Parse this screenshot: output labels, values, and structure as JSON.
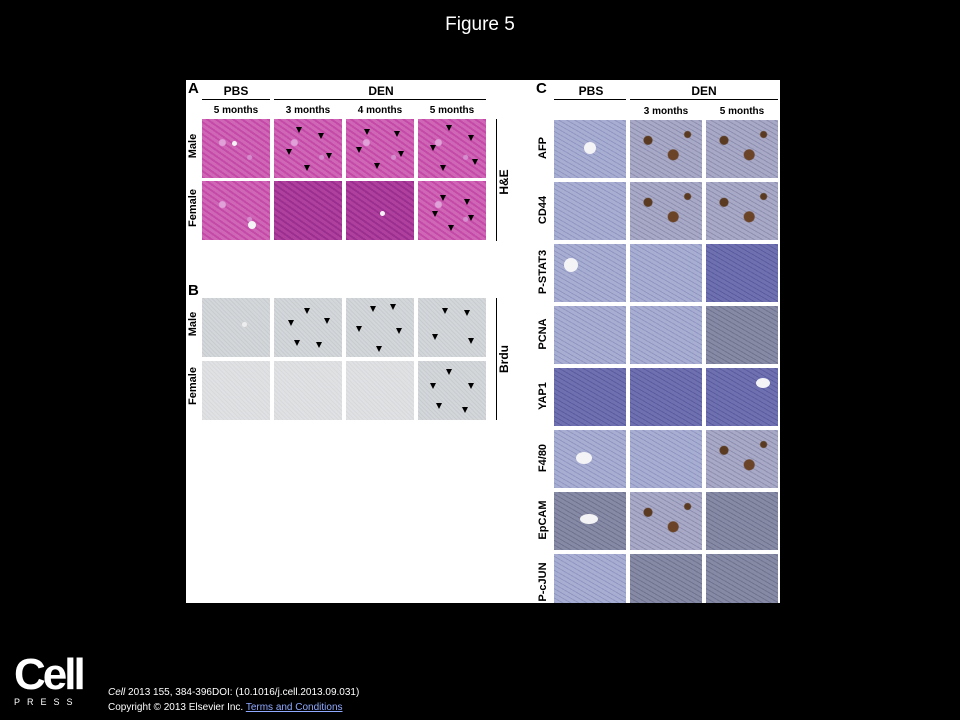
{
  "slide_title": "Figure 5",
  "panel_A": {
    "letter": "A",
    "groups": [
      "PBS",
      "DEN"
    ],
    "columns": [
      "5 months",
      "3 months",
      "4 months",
      "5 months"
    ],
    "rows": [
      "Male",
      "Female"
    ],
    "stain": "H&E"
  },
  "panel_B": {
    "letter": "B",
    "rows": [
      "Male",
      "Female"
    ],
    "stain": "Brdu"
  },
  "panel_C": {
    "letter": "C",
    "groups": [
      "PBS",
      "DEN"
    ],
    "columns": [
      "3 months",
      "5 months"
    ],
    "markers": [
      "AFP",
      "CD44",
      "P-STAT3",
      "PCNA",
      "YAP1",
      "F4/80",
      "EpCAM",
      "P-cJUN"
    ]
  },
  "footer": {
    "citation_journal": "Cell",
    "citation_rest": " 2013 155, 384-396DOI: (10.1016/j.cell.2013.09.031)",
    "copyright": "Copyright © 2013 Elsevier Inc. ",
    "link_text": "Terms and Conditions"
  },
  "logo": {
    "main": "Cell",
    "sub": "PRESS"
  }
}
